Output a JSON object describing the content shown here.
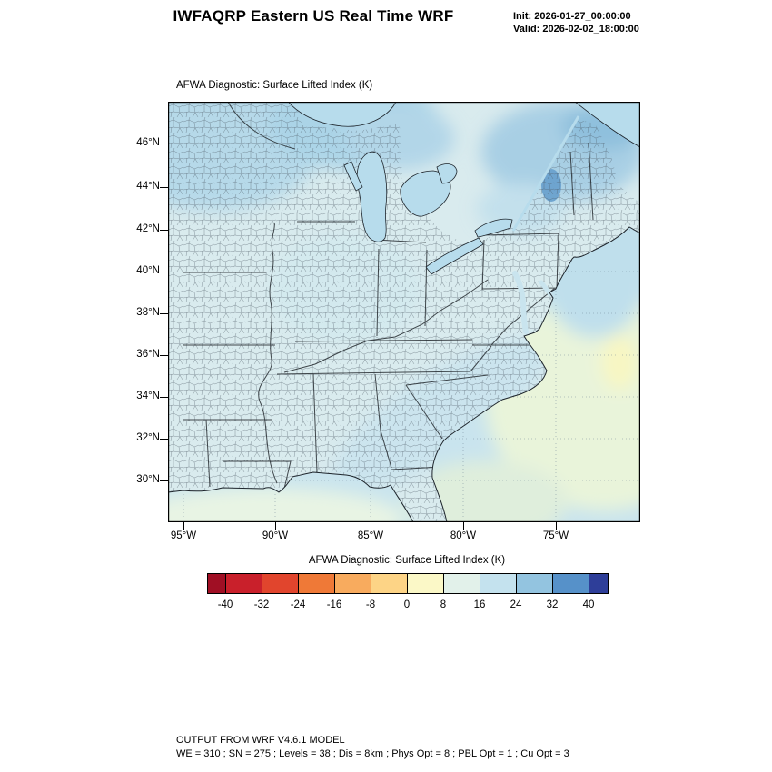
{
  "header": {
    "title": "IWFAQRP Eastern US Real Time WRF",
    "init_label": "Init: 2026-01-27_00:00:00",
    "valid_label": "Valid: 2026-02-02_18:00:00"
  },
  "map": {
    "subtitle": "AFWA Diagnostic: Surface Lifted Index   (K)",
    "lat_ticks": [
      {
        "label": "46°N",
        "pos": 46
      },
      {
        "label": "44°N",
        "pos": 94
      },
      {
        "label": "42°N",
        "pos": 141
      },
      {
        "label": "40°N",
        "pos": 187
      },
      {
        "label": "38°N",
        "pos": 233
      },
      {
        "label": "36°N",
        "pos": 279
      },
      {
        "label": "34°N",
        "pos": 325
      },
      {
        "label": "32°N",
        "pos": 371
      },
      {
        "label": "30°N",
        "pos": 417
      }
    ],
    "lon_ticks": [
      {
        "label": "95°W",
        "pos": 17
      },
      {
        "label": "90°W",
        "pos": 118
      },
      {
        "label": "85°W",
        "pos": 223
      },
      {
        "label": "80°W",
        "pos": 325
      },
      {
        "label": "75°W",
        "pos": 427
      }
    ]
  },
  "colorbar": {
    "title": "AFWA Diagnostic: Surface Lifted Index  (K)",
    "tick_labels": [
      "-40",
      "-32",
      "-24",
      "-16",
      "-8",
      "0",
      "8",
      "16",
      "24",
      "32",
      "40"
    ],
    "colors": [
      "#a00f24",
      "#c9202b",
      "#e1452d",
      "#ef7937",
      "#f8ab5e",
      "#fdd486",
      "#fbf8c7",
      "#e2f1ea",
      "#c4e2ee",
      "#93c4e0",
      "#5691c9",
      "#2e3e99"
    ]
  },
  "footer": {
    "line1": "OUTPUT FROM WRF V4.6.1 MODEL",
    "line2": "WE = 310 ; SN = 275 ; Levels = 38 ; Dis = 8km ; Phys Opt = 8 ; PBL Opt = 1 ; Cu Opt = 3"
  },
  "chart_data": {
    "type": "heatmap",
    "title": "AFWA Diagnostic: Surface Lifted Index (K)",
    "subtitle_top_left": "AFWA Diagnostic: Surface Lifted Index   (K)",
    "model_run": {
      "init": "2026-01-27_00:00:00",
      "valid": "2026-02-02_18:00:00"
    },
    "x_tick_labels": [
      "95°W",
      "90°W",
      "85°W",
      "80°W",
      "75°W"
    ],
    "y_tick_labels": [
      "30°N",
      "32°N",
      "34°N",
      "36°N",
      "38°N",
      "40°N",
      "42°N",
      "44°N",
      "46°N"
    ],
    "units": "K",
    "contour_levels": [
      -40,
      -32,
      -24,
      -16,
      -8,
      0,
      8,
      16,
      24,
      32,
      40
    ],
    "palette": [
      "#a00f24",
      "#c9202b",
      "#e1452d",
      "#ef7937",
      "#f8ab5e",
      "#fdd486",
      "#fbf8c7",
      "#e2f1ea",
      "#c4e2ee",
      "#93c4e0",
      "#5691c9",
      "#2e3e99"
    ],
    "legend_position": "bottom",
    "map_extent": {
      "lon": [
        "97°W",
        "72°W"
      ],
      "lat": [
        "28°N",
        "47.5°N"
      ]
    },
    "observed_field": [
      {
        "region": "most land area (Midwest / Southeast / Mid-Atlantic)",
        "value_range": "8 to 16"
      },
      {
        "region": "Upper Midwest, around Great Lakes, interior Northeast, Quebec",
        "value_range": "16 to 32"
      },
      {
        "region": "small dark maximum near 73W 44N (Adirondacks/Vermont)",
        "value_range": "32 to 40"
      },
      {
        "region": "coastal Atlantic shelf waters",
        "value_range": "8 to 24"
      },
      {
        "region": "open Atlantic southeast corner and Gulf of Mexico",
        "value_range": "0 to 8"
      }
    ],
    "overlays": [
      "county boundaries",
      "state boundaries",
      "coastlines",
      "Great Lakes",
      "dotted lat/lon graticule over ocean"
    ]
  }
}
